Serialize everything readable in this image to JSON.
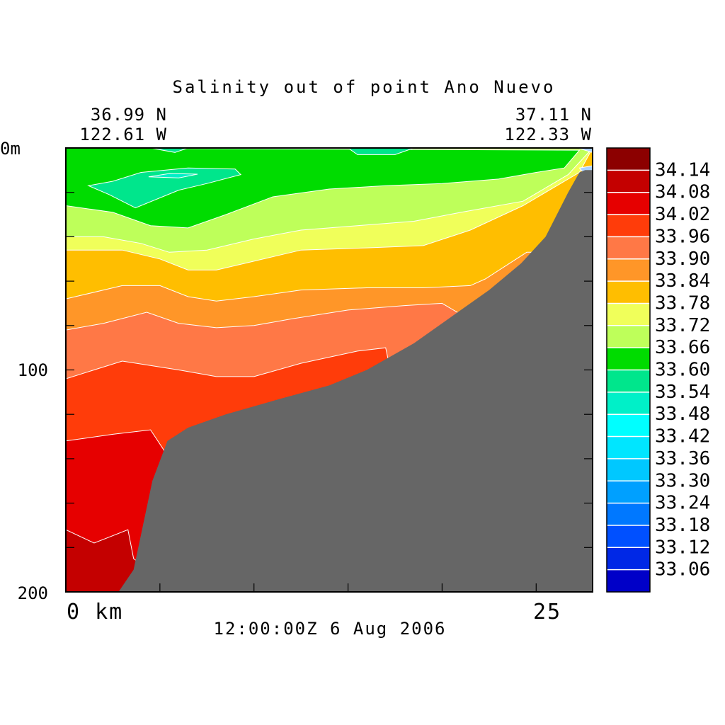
{
  "chart_data": {
    "type": "heatmap",
    "title": "Salinity out of point Ano Nuevo",
    "start_position": {
      "lat": "36.99 N",
      "lon": "122.61 W"
    },
    "end_position": {
      "lat": "37.11 N",
      "lon": "122.33 W"
    },
    "timestamp": "12:00:00Z   6 Aug 2006",
    "x_axis": {
      "label": "km",
      "range": [
        0,
        28
      ],
      "tick_labels": [
        "0 km",
        "25"
      ]
    },
    "y_axis": {
      "label": "m",
      "range": [
        0,
        200
      ],
      "inverted": true,
      "tick_labels": [
        "0m",
        "100",
        "200"
      ]
    },
    "colorbar": {
      "labels": [
        "34.14",
        "34.08",
        "34.02",
        "33.96",
        "33.90",
        "33.84",
        "33.78",
        "33.72",
        "33.66",
        "33.60",
        "33.54",
        "33.48",
        "33.42",
        "33.36",
        "33.30",
        "33.24",
        "33.18",
        "33.12",
        "33.06"
      ],
      "colors": [
        "#8c0000",
        "#c40000",
        "#e60000",
        "#ff3c0a",
        "#ff7846",
        "#ff9628",
        "#ffbe00",
        "#f0ff5a",
        "#beff5a",
        "#00dc00",
        "#00e68c",
        "#00f0c8",
        "#00ffff",
        "#00e6ff",
        "#00c8ff",
        "#00a0ff",
        "#0078ff",
        "#0050ff",
        "#0028e6",
        "#0000c8"
      ]
    },
    "bathymetry_color": "#666666",
    "bathymetry": [
      [
        2.8,
        200
      ],
      [
        3.6,
        190
      ],
      [
        4.6,
        150
      ],
      [
        5.4,
        132
      ],
      [
        6.5,
        126
      ],
      [
        8.5,
        120
      ],
      [
        11.4,
        113
      ],
      [
        14,
        107
      ],
      [
        16,
        100
      ],
      [
        18.5,
        88
      ],
      [
        20.5,
        76
      ],
      [
        22.5,
        64
      ],
      [
        24.2,
        52
      ],
      [
        25.5,
        40
      ],
      [
        26.7,
        20
      ],
      [
        27.3,
        11
      ],
      [
        27.6,
        10
      ],
      [
        28,
        10
      ],
      [
        28,
        200
      ]
    ],
    "contours": [
      {
        "level": "33.72-33.78",
        "boundary": [
          [
            0,
            46
          ],
          [
            3,
            46
          ],
          [
            5,
            50
          ],
          [
            6.5,
            55
          ],
          [
            8,
            55
          ],
          [
            10,
            51
          ],
          [
            12.5,
            46
          ],
          [
            16,
            45
          ],
          [
            19,
            44
          ],
          [
            21.5,
            37
          ],
          [
            24.3,
            26
          ],
          [
            27.3,
            11
          ],
          [
            28,
            0
          ],
          [
            0,
            0
          ]
        ]
      },
      {
        "level": "33.66-33.72",
        "boundary": [
          [
            0,
            40
          ],
          [
            2,
            40
          ],
          [
            4,
            43
          ],
          [
            5.5,
            47
          ],
          [
            7.5,
            46
          ],
          [
            10,
            41
          ],
          [
            12.5,
            37
          ],
          [
            15.5,
            35
          ],
          [
            18.5,
            33
          ],
          [
            21,
            29
          ],
          [
            24.3,
            24
          ],
          [
            26.7,
            12
          ],
          [
            28,
            0
          ],
          [
            0,
            0
          ]
        ]
      },
      {
        "level": "33.60-33.66",
        "boundary": [
          [
            0,
            26
          ],
          [
            2.5,
            29
          ],
          [
            4.5,
            35
          ],
          [
            6.5,
            36
          ],
          [
            8.5,
            30
          ],
          [
            11,
            22
          ],
          [
            14,
            18.5
          ],
          [
            17,
            17
          ],
          [
            20,
            16
          ],
          [
            23,
            14
          ],
          [
            25,
            11
          ],
          [
            26.5,
            9
          ],
          [
            27.3,
            1
          ],
          [
            0,
            0
          ]
        ]
      },
      {
        "level": "33.54-33.60",
        "boundary": [
          [
            1.2,
            17
          ],
          [
            2.5,
            15
          ],
          [
            4,
            11
          ],
          [
            6.5,
            9
          ],
          [
            9,
            9.5
          ],
          [
            9.3,
            12
          ],
          [
            7.5,
            16
          ],
          [
            6,
            19
          ],
          [
            3.7,
            27
          ],
          [
            2.3,
            21
          ],
          [
            1.2,
            17
          ]
        ]
      }
    ]
  }
}
